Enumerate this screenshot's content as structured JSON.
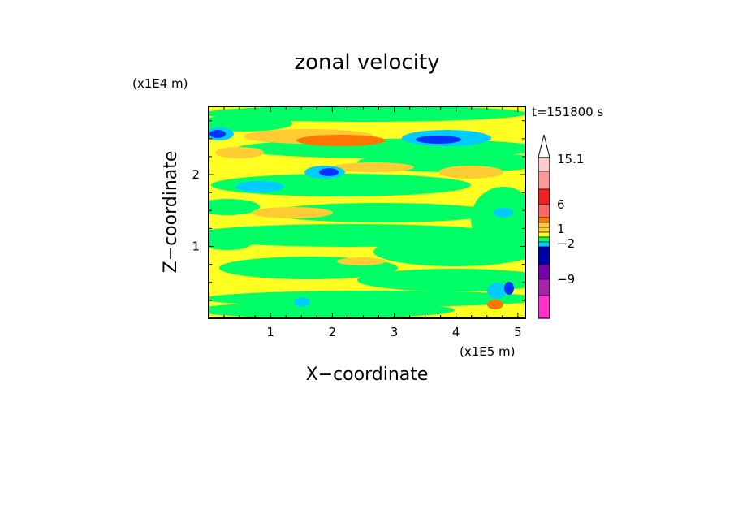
{
  "chart_data": {
    "type": "heatmap",
    "title": "zonal velocity",
    "time_label": "t=151800 s",
    "xlabel": "X−coordinate",
    "ylabel": "Z−coordinate",
    "x_unit": "(x1E5 m)",
    "y_unit": "(x1E4 m)",
    "x_ticks": [
      "1",
      "2",
      "3",
      "4",
      "5"
    ],
    "y_ticks": [
      "1",
      "2"
    ],
    "xlim": [
      0,
      5.12
    ],
    "ylim": [
      0,
      2.95
    ],
    "colorbar": {
      "labels": [
        "15.1",
        "6",
        "1",
        "−2",
        "−9"
      ],
      "levels": [
        15.1,
        6,
        1,
        -2,
        -9
      ],
      "colors": {
        "magenta": "#ff33cc",
        "purple": "#aa22aa",
        "violet": "#7700aa",
        "navy": "#0000aa",
        "blue": "#0033ff",
        "cyan": "#00ccff",
        "green": "#00ff66",
        "yellow": "#ffff22",
        "light_orange": "#ffcc33",
        "orange": "#ff7700",
        "red": "#ee2222",
        "salmon": "#ff6666",
        "pink": "#ff9999",
        "pale_pink": "#ffcccc"
      }
    }
  }
}
